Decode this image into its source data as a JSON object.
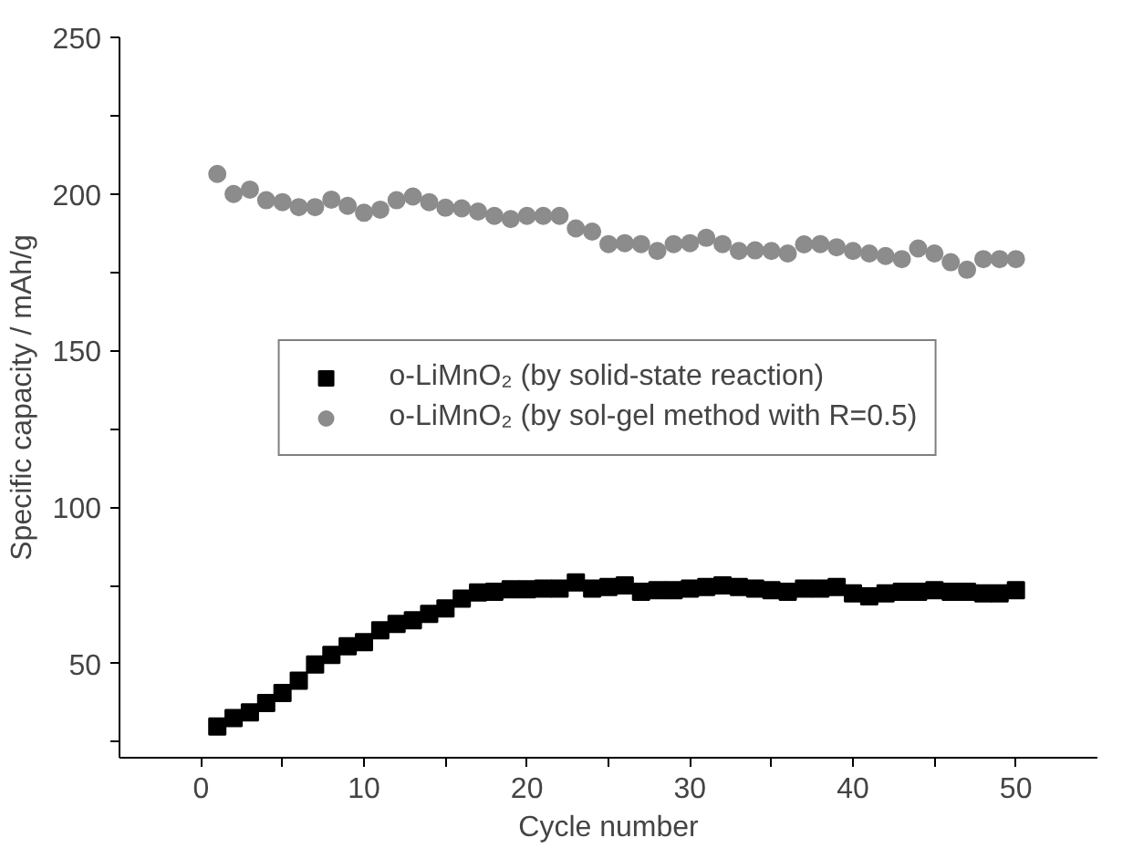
{
  "chart_data": {
    "type": "scatter",
    "xlabel": "Cycle number",
    "ylabel": "Specific capacity / mAh/g",
    "x": [
      1,
      2,
      3,
      4,
      5,
      6,
      7,
      8,
      9,
      10,
      11,
      12,
      13,
      14,
      15,
      16,
      17,
      18,
      19,
      20,
      21,
      22,
      23,
      24,
      25,
      26,
      27,
      28,
      29,
      30,
      31,
      32,
      33,
      34,
      35,
      36,
      37,
      38,
      39,
      40,
      41,
      42,
      43,
      44,
      45,
      46,
      47,
      48,
      49,
      50
    ],
    "series": [
      {
        "name": "o-LiMnO₂ (by solid-state reaction)",
        "color": "#000000",
        "marker": "square",
        "values": [
          30,
          32.7,
          34.5,
          37.5,
          40.7,
          44.6,
          49.8,
          52.8,
          55.6,
          56.9,
          60.7,
          62.7,
          63.9,
          65.9,
          67.7,
          70.8,
          72.8,
          73,
          73.8,
          73.8,
          74,
          74,
          76,
          74,
          74.5,
          75,
          73,
          73.5,
          73.5,
          74,
          74.5,
          75,
          74.5,
          74,
          73.5,
          73,
          74,
          74,
          74.5,
          72.5,
          71.5,
          72.5,
          73,
          73,
          73.5,
          73,
          73,
          72.5,
          72.5,
          73.5
        ]
      },
      {
        "name": "o-LiMnO₂ (by sol-gel method with R=0.5)",
        "color": "#8c8c8c",
        "marker": "circle",
        "values": [
          206.4,
          200,
          201.4,
          198,
          197.4,
          195.8,
          195.8,
          198.2,
          196.2,
          194,
          195,
          198,
          199.2,
          197.4,
          195.6,
          195.4,
          194.4,
          193,
          192,
          193,
          193,
          193,
          189,
          188,
          184,
          184.3,
          184,
          181.8,
          184,
          184.3,
          186,
          184,
          181.8,
          182,
          181.8,
          181,
          183.9,
          184,
          183,
          181.8,
          181,
          180.2,
          179.2,
          182.6,
          181,
          178.2,
          175.8,
          179.2,
          179.2,
          179.2
        ]
      }
    ],
    "xlim": [
      -5,
      55
    ],
    "xticks": [
      0,
      {
        "value": 5,
        "label": null
      },
      10,
      {
        "value": 15,
        "label": null
      },
      20,
      {
        "value": 25,
        "label": null
      },
      30,
      {
        "value": 35,
        "label": null
      },
      40,
      {
        "value": 45,
        "label": null
      },
      50
    ],
    "ylim": [
      20,
      250
    ],
    "yticks": [
      {
        "value": 25,
        "label": null
      },
      50,
      {
        "value": 75,
        "label": null
      },
      100,
      {
        "value": 125,
        "label": null
      },
      150,
      {
        "value": 175,
        "label": null
      },
      200,
      {
        "value": 225,
        "label": null
      },
      250
    ],
    "grid": false,
    "legend": "center"
  }
}
